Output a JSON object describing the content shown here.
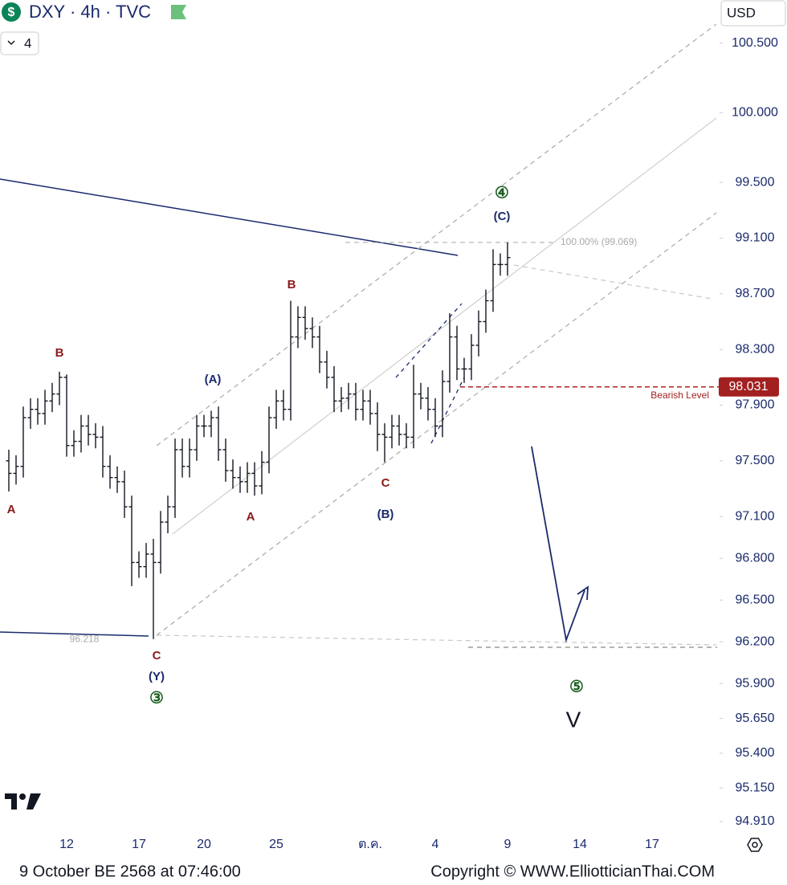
{
  "header": {
    "symbol": "DXY · 4h · TVC",
    "currency": "USD",
    "indicator_count": "4"
  },
  "footer": {
    "timestamp": "9 October BE 2568 at 07:46:00",
    "copyright": "Copyright © WWW.ElliotticianThai.COM"
  },
  "chart_data": {
    "type": "ohlc",
    "color": "#131722",
    "categories": [
      null,
      null,
      null,
      null,
      null,
      null,
      null,
      null,
      "12",
      null,
      null,
      null,
      null,
      null,
      null,
      null,
      null,
      null,
      "17",
      null,
      null,
      null,
      null,
      null,
      null,
      null,
      null,
      "20",
      null,
      null,
      null,
      null,
      null,
      null,
      null,
      null,
      null,
      "25",
      null,
      null,
      null,
      null,
      null,
      null,
      null,
      null,
      null,
      null,
      null,
      null,
      "ต.ค.",
      null,
      null,
      null,
      null,
      null,
      null,
      null,
      null,
      "4",
      null,
      null,
      null,
      null,
      null,
      null,
      null,
      null,
      null,
      "9",
      null,
      null,
      null,
      null,
      null,
      null,
      null,
      null,
      null,
      "14",
      null,
      null,
      null,
      null,
      null,
      null,
      null,
      null,
      null,
      "17"
    ],
    "open": [
      97.5,
      97.41,
      97.46,
      97.81,
      97.87,
      97.84,
      97.93,
      97.98,
      98.1,
      97.61,
      97.64,
      97.75,
      97.69,
      97.67,
      97.46,
      97.38,
      97.35,
      97.17,
      96.77,
      96.74,
      96.83,
      96.77,
      97.06,
      97.17,
      97.58,
      97.46,
      97.58,
      97.75,
      97.75,
      97.81,
      97.58,
      97.43,
      97.38,
      97.35,
      97.41,
      97.32,
      97.49,
      97.81,
      97.93,
      97.87,
      98.39,
      98.53,
      98.45,
      98.39,
      98.21,
      98.1,
      97.93,
      97.95,
      97.98,
      97.87,
      97.93,
      97.84,
      97.69,
      97.67,
      97.75,
      97.69,
      97.67,
      97.98,
      97.95,
      97.87,
      97.75,
      98.07,
      98.39,
      98.16,
      98.16,
      98.33,
      98.5,
      98.65,
      98.91,
      98.91,
      null,
      null,
      null,
      null,
      null,
      null,
      null,
      null,
      null,
      null,
      null,
      null,
      null,
      null,
      null,
      null,
      null,
      null,
      null,
      null
    ],
    "high": [
      97.58,
      97.54,
      97.89,
      97.95,
      97.95,
      98.01,
      98.06,
      98.14,
      98.12,
      97.72,
      97.83,
      97.83,
      97.77,
      97.75,
      97.54,
      97.46,
      97.43,
      97.25,
      96.85,
      96.91,
      96.94,
      97.14,
      97.25,
      97.66,
      97.66,
      97.66,
      97.83,
      97.83,
      97.86,
      97.89,
      97.66,
      97.51,
      97.46,
      97.49,
      97.49,
      97.57,
      97.89,
      98.01,
      98.01,
      98.65,
      98.61,
      98.61,
      98.53,
      98.47,
      98.29,
      98.18,
      98.03,
      98.06,
      98.06,
      98.01,
      98.01,
      97.92,
      97.77,
      97.83,
      97.83,
      97.77,
      98.19,
      98.06,
      98.03,
      97.95,
      98.15,
      98.56,
      98.47,
      98.24,
      98.41,
      98.58,
      98.73,
      99.02,
      98.99,
      99.069,
      null,
      null,
      null,
      null,
      null,
      null,
      null,
      null,
      null,
      null,
      null,
      null,
      null,
      null,
      null,
      null,
      null,
      null,
      null,
      null
    ],
    "low": [
      97.28,
      97.33,
      97.38,
      97.73,
      97.76,
      97.76,
      97.85,
      97.9,
      97.53,
      97.53,
      97.56,
      97.61,
      97.59,
      97.38,
      97.3,
      97.27,
      97.09,
      96.6,
      96.66,
      96.66,
      96.22,
      96.69,
      96.98,
      97.09,
      97.38,
      97.38,
      97.5,
      97.67,
      97.67,
      97.5,
      97.35,
      97.3,
      97.27,
      97.27,
      97.25,
      97.26,
      97.41,
      97.73,
      97.79,
      97.79,
      98.31,
      98.37,
      98.31,
      98.13,
      98.02,
      97.85,
      97.85,
      97.87,
      97.79,
      97.79,
      97.76,
      97.57,
      97.49,
      97.59,
      97.61,
      97.59,
      97.59,
      97.87,
      97.79,
      97.67,
      97.67,
      97.99,
      98.08,
      98.06,
      98.08,
      98.25,
      98.42,
      98.57,
      98.83,
      98.83,
      null,
      null,
      null,
      null,
      null,
      null,
      null,
      null,
      null,
      null,
      null,
      null,
      null,
      null,
      null,
      null,
      null,
      null,
      null,
      null
    ],
    "close": [
      97.41,
      97.46,
      97.81,
      97.87,
      97.84,
      97.93,
      97.98,
      98.1,
      97.61,
      97.64,
      97.75,
      97.69,
      97.67,
      97.46,
      97.38,
      97.35,
      97.17,
      96.77,
      96.74,
      96.83,
      96.77,
      97.06,
      97.17,
      97.58,
      97.46,
      97.58,
      97.75,
      97.75,
      97.81,
      97.58,
      97.43,
      97.38,
      97.35,
      97.41,
      97.32,
      97.49,
      97.81,
      97.93,
      97.87,
      98.39,
      98.53,
      98.45,
      98.39,
      98.21,
      98.1,
      97.93,
      97.95,
      97.98,
      97.87,
      97.93,
      97.84,
      97.69,
      97.67,
      97.75,
      97.69,
      97.67,
      97.98,
      97.95,
      97.87,
      97.75,
      98.07,
      98.39,
      98.16,
      98.16,
      98.33,
      98.5,
      98.65,
      98.91,
      98.91,
      98.96,
      null,
      null,
      null,
      null,
      null,
      null,
      null,
      null,
      null,
      null,
      null,
      null,
      null,
      null,
      null,
      null,
      null,
      null,
      null,
      null
    ],
    "ylim": [
      94.84,
      100.81
    ],
    "yticks": [
      {
        "value": 100.5,
        "label": "100.500"
      },
      {
        "value": 100,
        "label": "100.000"
      },
      {
        "value": 99.5,
        "label": "99.500"
      },
      {
        "value": 99.1,
        "label": "99.100"
      },
      {
        "value": 98.7,
        "label": "98.700"
      },
      {
        "value": 98.3,
        "label": "98.300"
      },
      {
        "value": 97.9,
        "label": "97.900"
      },
      {
        "value": 97.5,
        "label": "97.500"
      },
      {
        "value": 97.1,
        "label": "97.100"
      },
      {
        "value": 96.8,
        "label": "96.800"
      },
      {
        "value": 96.5,
        "label": "96.500"
      },
      {
        "value": 96.2,
        "label": "96.200"
      },
      {
        "value": 95.9,
        "label": "95.900"
      },
      {
        "value": 95.65,
        "label": "95.650"
      },
      {
        "value": 95.4,
        "label": "95.400"
      },
      {
        "value": 95.15,
        "label": "95.150"
      },
      {
        "value": 94.91,
        "label": "94.910"
      }
    ],
    "bearish_level": {
      "value": 98.031,
      "label": "Bearish Level"
    },
    "fib_label": "100.00% (99.069)",
    "low_label": 96.218,
    "annotations": [
      "A",
      "B",
      "(A)",
      "A",
      "B",
      "C",
      "(B)",
      "C",
      "(Y)",
      "③",
      "(C)",
      "④",
      "⑤",
      "V"
    ]
  }
}
